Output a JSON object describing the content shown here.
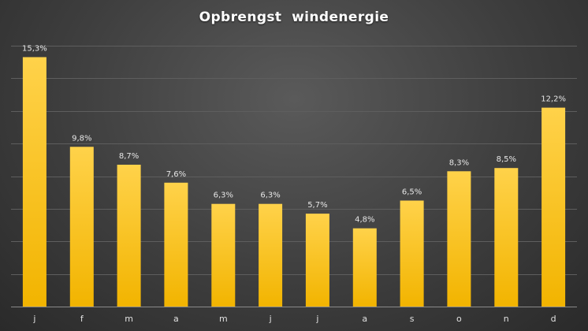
{
  "chart_data": {
    "type": "bar",
    "title": "Opbrengst  windenergie",
    "categories": [
      "j",
      "f",
      "m",
      "a",
      "m",
      "j",
      "j",
      "a",
      "s",
      "o",
      "n",
      "d"
    ],
    "values": [
      15.3,
      9.8,
      8.7,
      7.6,
      6.3,
      6.3,
      5.7,
      4.8,
      6.5,
      8.3,
      8.5,
      12.2
    ],
    "data_labels": [
      "15,3%",
      "9,8%",
      "8,7%",
      "7,6%",
      "6,3%",
      "6,3%",
      "5,7%",
      "4,8%",
      "6,5%",
      "8,3%",
      "8,5%",
      "12,2%"
    ],
    "ylim": [
      0,
      16
    ],
    "y_gridline_step": 2,
    "grid": true,
    "show_y_tick_labels": false,
    "legend": "none",
    "bar_color_top": "#ffd24a",
    "bar_color_bottom": "#f2b400",
    "background_color": "#3e3e3e"
  }
}
